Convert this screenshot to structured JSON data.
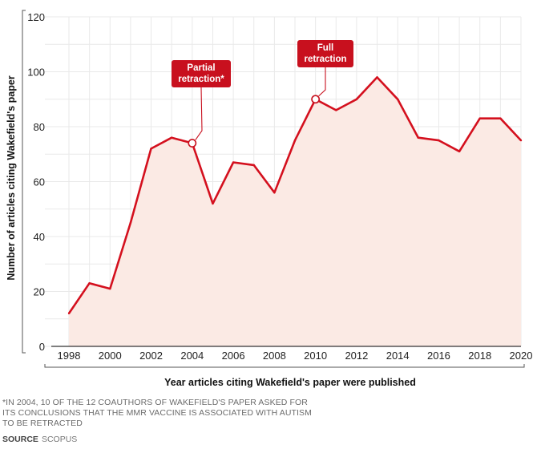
{
  "chart_data": {
    "type": "area",
    "x": [
      1998,
      1999,
      2000,
      2001,
      2002,
      2003,
      2004,
      2005,
      2006,
      2007,
      2008,
      2009,
      2010,
      2011,
      2012,
      2013,
      2014,
      2015,
      2016,
      2017,
      2018,
      2019,
      2020
    ],
    "series": [
      {
        "values": [
          12,
          23,
          21,
          45,
          72,
          76,
          74,
          52,
          67,
          66,
          56,
          75,
          90,
          86,
          90,
          98,
          90,
          76,
          75,
          71,
          83,
          83,
          75
        ]
      }
    ],
    "xlabel": "Year articles citing Wakefield's paper were published",
    "ylabel": "Number of articles citing Wakefield's paper",
    "xticks": [
      1998,
      2000,
      2002,
      2004,
      2006,
      2008,
      2010,
      2012,
      2014,
      2016,
      2018,
      2020
    ],
    "yticks": [
      0,
      20,
      40,
      60,
      80,
      100,
      120
    ],
    "xlim": [
      1998,
      2020
    ],
    "ylim": [
      0,
      120
    ],
    "grid": true,
    "annotations": [
      {
        "x": 2004,
        "y": 74,
        "lines": [
          "Partial",
          "retraction*"
        ]
      },
      {
        "x": 2010,
        "y": 90,
        "lines": [
          "Full",
          "retraction"
        ]
      }
    ],
    "colors": {
      "line": "#d4101e",
      "fill": "#fbeae4",
      "callout": "#c8101e",
      "grid": "#e9e9e9"
    }
  },
  "footnote": "*In 2004, 10 of the 12 coauthors of Wakefield's paper asked for its conclusions that the MMR vaccine is associated with autism to be retracted",
  "source": {
    "label": "SOURCE",
    "value": "SCOPUS"
  }
}
